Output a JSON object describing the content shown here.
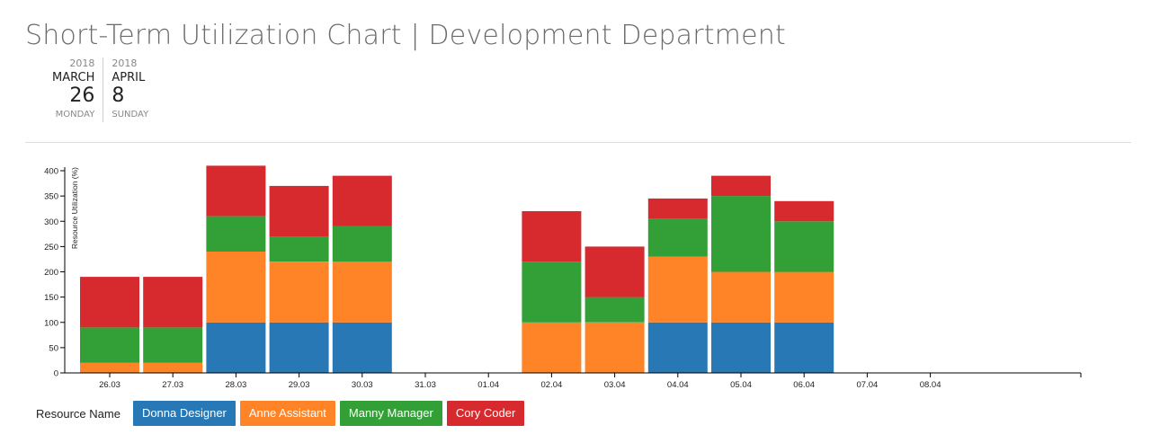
{
  "header": {
    "title": "Short-Term Utilization Chart | Development Department"
  },
  "date_range": {
    "start": {
      "year": "2018",
      "month": "MARCH",
      "day": "26",
      "weekday": "MONDAY"
    },
    "end": {
      "year": "2018",
      "month": "APRIL",
      "day": "8",
      "weekday": "SUNDAY"
    }
  },
  "legend": {
    "title": "Resource Name",
    "items": [
      {
        "label": "Donna Designer",
        "color": "#2878b5"
      },
      {
        "label": "Anne Assistant",
        "color": "#fe8427"
      },
      {
        "label": "Manny Manager",
        "color": "#33a037"
      },
      {
        "label": "Cory Coder",
        "color": "#d62a2f"
      }
    ]
  },
  "chart_data": {
    "type": "bar",
    "stacked": true,
    "title": "",
    "xlabel": "",
    "ylabel": "Resource Utilization (%)",
    "ylim": [
      0,
      400
    ],
    "yticks": [
      0,
      50,
      100,
      150,
      200,
      250,
      300,
      350,
      400
    ],
    "grid": false,
    "categories": [
      "26.03",
      "27.03",
      "28.03",
      "29.03",
      "30.03",
      "31.03",
      "01.04",
      "02.04",
      "03.04",
      "04.04",
      "05.04",
      "06.04",
      "07.04",
      "08.04"
    ],
    "series": [
      {
        "name": "Donna Designer",
        "color": "#2878b5",
        "values": [
          0,
          0,
          100,
          100,
          100,
          0,
          0,
          0,
          0,
          100,
          100,
          100,
          0,
          0
        ]
      },
      {
        "name": "Anne Assistant",
        "color": "#fe8427",
        "values": [
          20,
          20,
          140,
          120,
          120,
          0,
          0,
          100,
          100,
          130,
          100,
          100,
          0,
          0
        ]
      },
      {
        "name": "Manny Manager",
        "color": "#33a037",
        "values": [
          70,
          70,
          70,
          50,
          70,
          0,
          0,
          120,
          50,
          75,
          150,
          100,
          0,
          0
        ]
      },
      {
        "name": "Cory Coder",
        "color": "#d62a2f",
        "values": [
          100,
          100,
          100,
          100,
          100,
          0,
          0,
          100,
          100,
          40,
          40,
          40,
          0,
          0
        ]
      }
    ]
  }
}
